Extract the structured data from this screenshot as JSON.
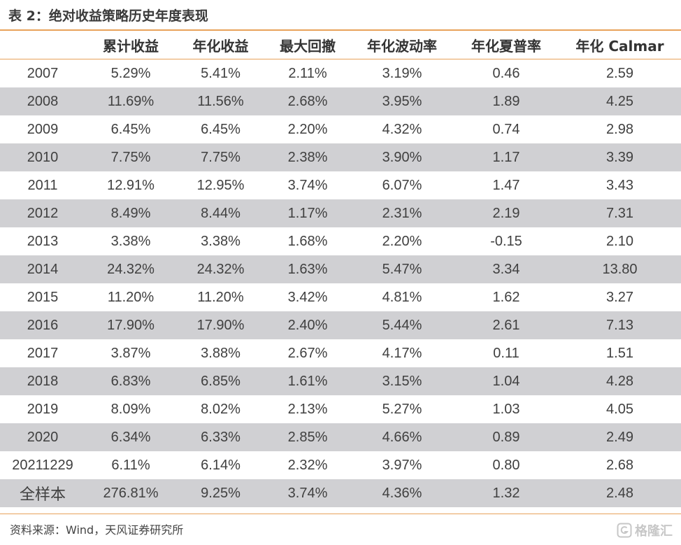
{
  "title": "表 2：绝对收益策略历史年度表现",
  "table": {
    "headers": [
      "",
      "累计收益",
      "年化收益",
      "最大回撤",
      "年化波动率",
      "年化夏普率",
      "年化 Calmar"
    ],
    "rows": [
      [
        "2007",
        "5.29%",
        "5.41%",
        "2.11%",
        "3.19%",
        "0.46",
        "2.59"
      ],
      [
        "2008",
        "11.69%",
        "11.56%",
        "2.68%",
        "3.95%",
        "1.89",
        "4.25"
      ],
      [
        "2009",
        "6.45%",
        "6.45%",
        "2.20%",
        "4.32%",
        "0.74",
        "2.98"
      ],
      [
        "2010",
        "7.75%",
        "7.75%",
        "2.38%",
        "3.90%",
        "1.17",
        "3.39"
      ],
      [
        "2011",
        "12.91%",
        "12.95%",
        "3.74%",
        "6.07%",
        "1.47",
        "3.43"
      ],
      [
        "2012",
        "8.49%",
        "8.44%",
        "1.17%",
        "2.31%",
        "2.19",
        "7.31"
      ],
      [
        "2013",
        "3.38%",
        "3.38%",
        "1.68%",
        "2.20%",
        "-0.15",
        "2.10"
      ],
      [
        "2014",
        "24.32%",
        "24.32%",
        "1.63%",
        "5.47%",
        "3.34",
        "13.80"
      ],
      [
        "2015",
        "11.20%",
        "11.20%",
        "3.42%",
        "4.81%",
        "1.62",
        "3.27"
      ],
      [
        "2016",
        "17.90%",
        "17.90%",
        "2.40%",
        "5.44%",
        "2.61",
        "7.13"
      ],
      [
        "2017",
        "3.87%",
        "3.88%",
        "2.67%",
        "4.17%",
        "0.11",
        "1.51"
      ],
      [
        "2018",
        "6.83%",
        "6.85%",
        "1.61%",
        "3.15%",
        "1.04",
        "4.28"
      ],
      [
        "2019",
        "8.09%",
        "8.02%",
        "2.13%",
        "5.27%",
        "1.03",
        "4.05"
      ],
      [
        "2020",
        "6.34%",
        "6.33%",
        "2.85%",
        "4.66%",
        "0.89",
        "2.49"
      ],
      [
        "20211229",
        "6.11%",
        "6.14%",
        "2.32%",
        "3.97%",
        "0.80",
        "2.68"
      ],
      [
        "全样本",
        "276.81%",
        "9.25%",
        "3.74%",
        "4.36%",
        "1.32",
        "2.48"
      ]
    ]
  },
  "source": "资料来源：Wind，天风证券研究所",
  "watermark": {
    "icon": "gelonghui-logo-icon",
    "text": "格隆汇"
  },
  "colors": {
    "accent_rule": "#e8a25a",
    "stripe": "#d0d0d3"
  }
}
